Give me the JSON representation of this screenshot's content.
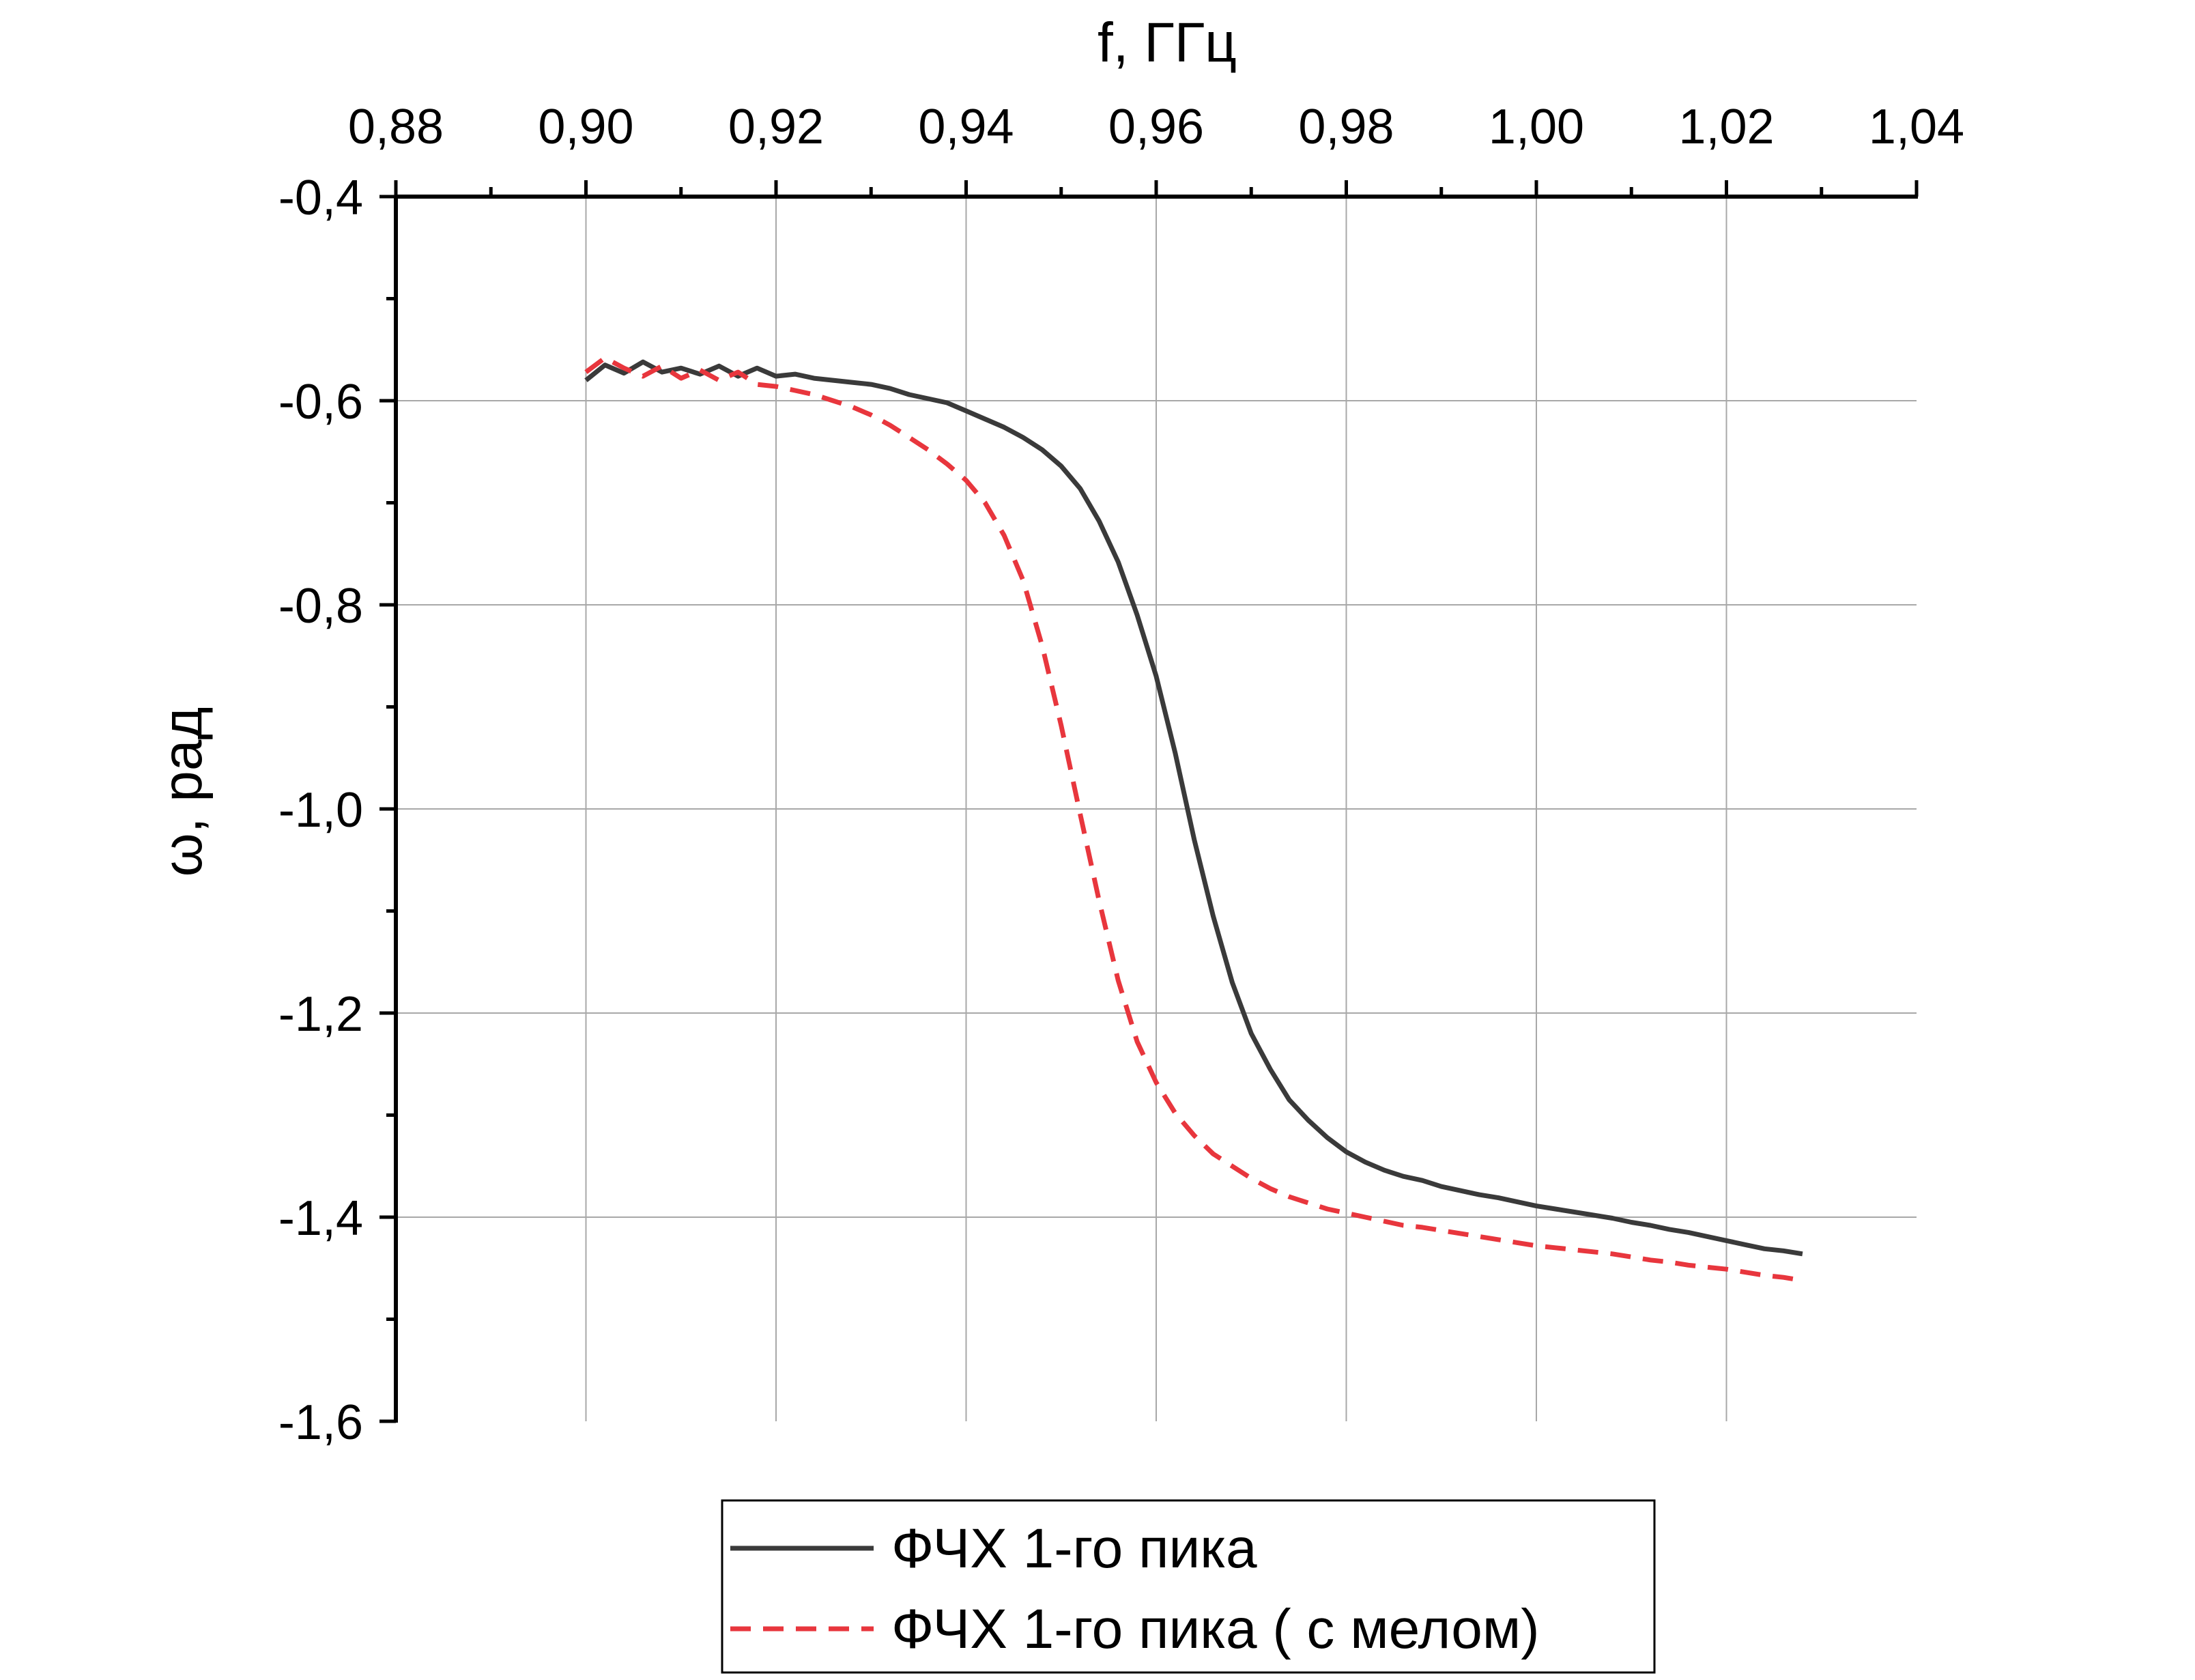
{
  "chart_data": {
    "type": "line",
    "title": "",
    "xlabel": "f, ГГц",
    "ylabel": "ω, рад",
    "xlim": [
      0.88,
      1.04
    ],
    "ylim": [
      -1.6,
      -0.4
    ],
    "x_ticks": [
      "0,88",
      "0,90",
      "0,92",
      "0,94",
      "0,96",
      "0,98",
      "1,00",
      "1,02",
      "1,04"
    ],
    "y_ticks": [
      "-0,4",
      "-0,6",
      "-0,8",
      "-1,0",
      "-1,2",
      "-1,4",
      "-1,6"
    ],
    "x_axis_position": "top",
    "grid": true,
    "legend_position": "bottom-center",
    "series": [
      {
        "name": "ФЧХ 1-го пика",
        "color": "#3a3a3a",
        "style": "solid",
        "points": [
          [
            0.9,
            -0.58
          ],
          [
            0.902,
            -0.565
          ],
          [
            0.904,
            -0.573
          ],
          [
            0.906,
            -0.562
          ],
          [
            0.908,
            -0.572
          ],
          [
            0.91,
            -0.568
          ],
          [
            0.912,
            -0.574
          ],
          [
            0.914,
            -0.566
          ],
          [
            0.916,
            -0.576
          ],
          [
            0.918,
            -0.568
          ],
          [
            0.92,
            -0.576
          ],
          [
            0.922,
            -0.574
          ],
          [
            0.924,
            -0.578
          ],
          [
            0.926,
            -0.58
          ],
          [
            0.928,
            -0.582
          ],
          [
            0.93,
            -0.584
          ],
          [
            0.932,
            -0.588
          ],
          [
            0.934,
            -0.594
          ],
          [
            0.936,
            -0.598
          ],
          [
            0.938,
            -0.602
          ],
          [
            0.94,
            -0.61
          ],
          [
            0.942,
            -0.618
          ],
          [
            0.944,
            -0.626
          ],
          [
            0.946,
            -0.636
          ],
          [
            0.948,
            -0.648
          ],
          [
            0.95,
            -0.664
          ],
          [
            0.952,
            -0.686
          ],
          [
            0.954,
            -0.718
          ],
          [
            0.956,
            -0.758
          ],
          [
            0.958,
            -0.81
          ],
          [
            0.96,
            -0.87
          ],
          [
            0.962,
            -0.945
          ],
          [
            0.964,
            -1.03
          ],
          [
            0.966,
            -1.105
          ],
          [
            0.968,
            -1.17
          ],
          [
            0.97,
            -1.22
          ],
          [
            0.972,
            -1.255
          ],
          [
            0.974,
            -1.285
          ],
          [
            0.976,
            -1.305
          ],
          [
            0.978,
            -1.322
          ],
          [
            0.98,
            -1.336
          ],
          [
            0.982,
            -1.346
          ],
          [
            0.984,
            -1.354
          ],
          [
            0.986,
            -1.36
          ],
          [
            0.988,
            -1.364
          ],
          [
            0.99,
            -1.37
          ],
          [
            0.992,
            -1.374
          ],
          [
            0.994,
            -1.378
          ],
          [
            0.996,
            -1.381
          ],
          [
            0.998,
            -1.385
          ],
          [
            1.0,
            -1.389
          ],
          [
            1.002,
            -1.392
          ],
          [
            1.004,
            -1.395
          ],
          [
            1.006,
            -1.398
          ],
          [
            1.008,
            -1.401
          ],
          [
            1.01,
            -1.405
          ],
          [
            1.012,
            -1.408
          ],
          [
            1.014,
            -1.412
          ],
          [
            1.016,
            -1.415
          ],
          [
            1.018,
            -1.419
          ],
          [
            1.02,
            -1.423
          ],
          [
            1.022,
            -1.427
          ],
          [
            1.024,
            -1.431
          ],
          [
            1.026,
            -1.433
          ],
          [
            1.028,
            -1.436
          ]
        ]
      },
      {
        "name": "ФЧХ 1-го пика ( с мелом)",
        "color": "#e8363d",
        "style": "dashed",
        "points": [
          [
            0.9,
            -0.572
          ],
          [
            0.902,
            -0.558
          ],
          [
            0.904,
            -0.568
          ],
          [
            0.906,
            -0.576
          ],
          [
            0.908,
            -0.566
          ],
          [
            0.91,
            -0.578
          ],
          [
            0.912,
            -0.57
          ],
          [
            0.914,
            -0.58
          ],
          [
            0.916,
            -0.572
          ],
          [
            0.918,
            -0.584
          ],
          [
            0.92,
            -0.586
          ],
          [
            0.922,
            -0.59
          ],
          [
            0.924,
            -0.594
          ],
          [
            0.926,
            -0.6
          ],
          [
            0.928,
            -0.606
          ],
          [
            0.93,
            -0.614
          ],
          [
            0.932,
            -0.624
          ],
          [
            0.934,
            -0.636
          ],
          [
            0.936,
            -0.648
          ],
          [
            0.938,
            -0.662
          ],
          [
            0.94,
            -0.678
          ],
          [
            0.942,
            -0.7
          ],
          [
            0.944,
            -0.732
          ],
          [
            0.946,
            -0.776
          ],
          [
            0.948,
            -0.84
          ],
          [
            0.95,
            -0.918
          ],
          [
            0.952,
            -1.005
          ],
          [
            0.954,
            -1.09
          ],
          [
            0.956,
            -1.168
          ],
          [
            0.958,
            -1.228
          ],
          [
            0.96,
            -1.268
          ],
          [
            0.962,
            -1.298
          ],
          [
            0.964,
            -1.32
          ],
          [
            0.966,
            -1.338
          ],
          [
            0.968,
            -1.35
          ],
          [
            0.97,
            -1.362
          ],
          [
            0.972,
            -1.372
          ],
          [
            0.974,
            -1.38
          ],
          [
            0.976,
            -1.386
          ],
          [
            0.978,
            -1.392
          ],
          [
            0.98,
            -1.396
          ],
          [
            0.982,
            -1.4
          ],
          [
            0.984,
            -1.404
          ],
          [
            0.986,
            -1.408
          ],
          [
            0.988,
            -1.41
          ],
          [
            0.99,
            -1.413
          ],
          [
            0.992,
            -1.416
          ],
          [
            0.994,
            -1.419
          ],
          [
            0.996,
            -1.422
          ],
          [
            0.998,
            -1.425
          ],
          [
            1.0,
            -1.428
          ],
          [
            1.002,
            -1.43
          ],
          [
            1.004,
            -1.432
          ],
          [
            1.006,
            -1.434
          ],
          [
            1.008,
            -1.436
          ],
          [
            1.01,
            -1.439
          ],
          [
            1.012,
            -1.442
          ],
          [
            1.014,
            -1.444
          ],
          [
            1.016,
            -1.447
          ],
          [
            1.018,
            -1.449
          ],
          [
            1.02,
            -1.451
          ],
          [
            1.022,
            -1.454
          ],
          [
            1.024,
            -1.457
          ],
          [
            1.026,
            -1.459
          ],
          [
            1.028,
            -1.462
          ]
        ]
      }
    ]
  }
}
